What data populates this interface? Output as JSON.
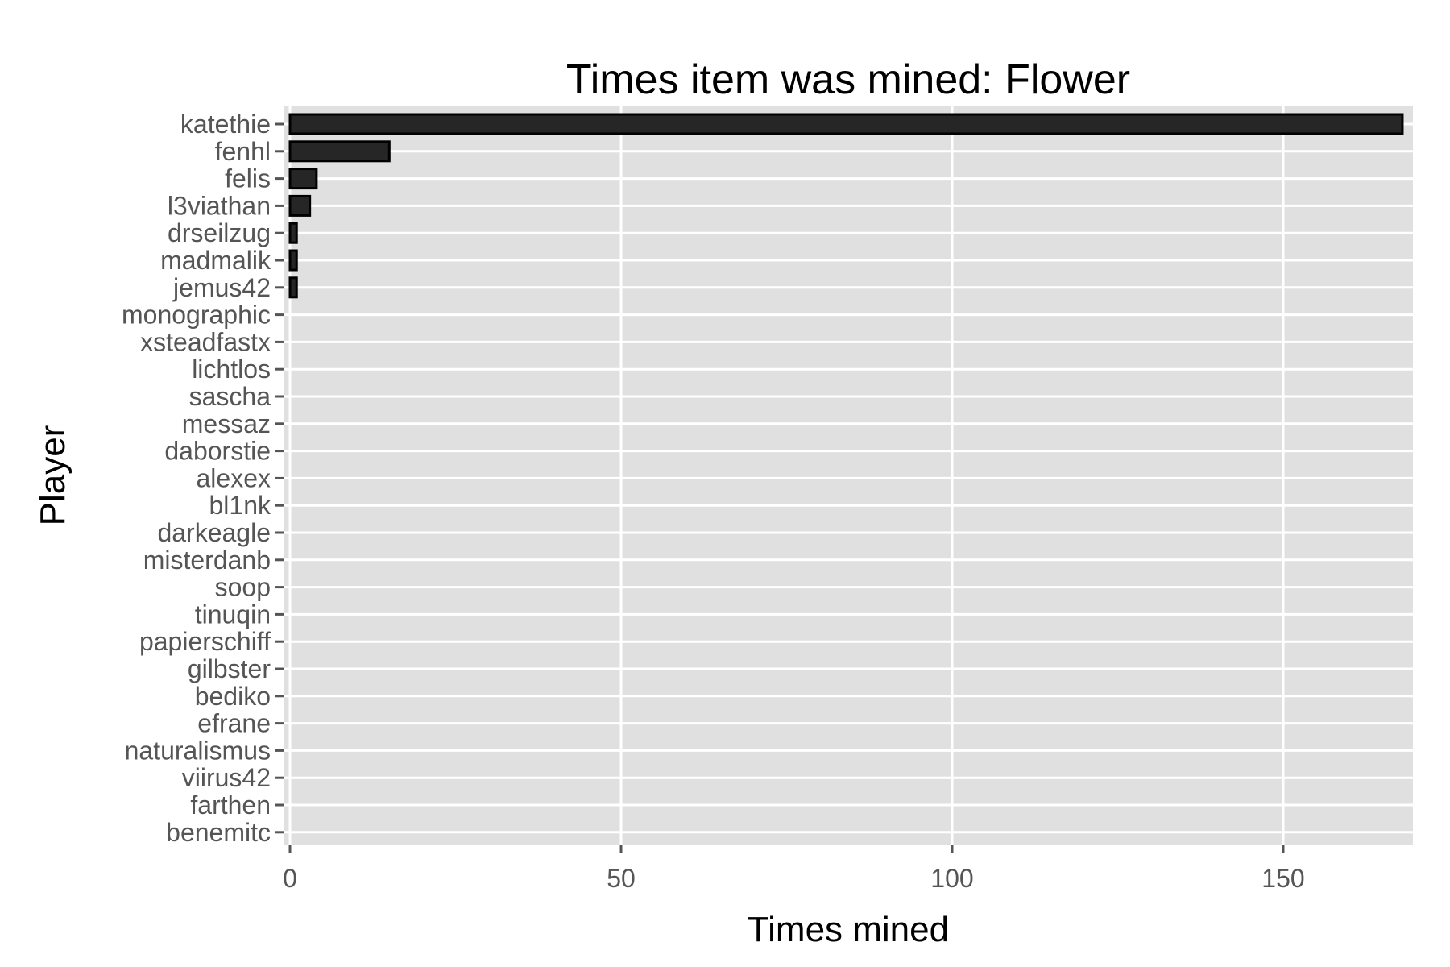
{
  "chart_data": {
    "type": "bar",
    "orientation": "horizontal",
    "title": "Times item was mined: Flower",
    "xlabel": "Times mined",
    "ylabel": "Player",
    "xlim": [
      0,
      170
    ],
    "xticks": [
      0,
      50,
      100,
      150
    ],
    "grid": true,
    "colors": {
      "panel": "#e0e0e0",
      "grid": "#ffffff",
      "bar_fill": "#262626",
      "bar_stroke": "#000000",
      "tick": "#555555",
      "text": "#000000"
    },
    "categories": [
      "katethie",
      "fenhl",
      "felis",
      "l3viathan",
      "drseilzug",
      "madmalik",
      "jemus42",
      "monographic",
      "xsteadfastx",
      "lichtlos",
      "sascha",
      "messaz",
      "daborstie",
      "alexex",
      "bl1nk",
      "darkeagle",
      "misterdanb",
      "soop",
      "tinuqin",
      "papierschiff",
      "gilbster",
      "bediko",
      "efrane",
      "naturalismus",
      "viirus42",
      "farthen",
      "benemitc"
    ],
    "values": [
      168,
      15,
      4,
      3,
      1,
      1,
      1,
      0,
      0,
      0,
      0,
      0,
      0,
      0,
      0,
      0,
      0,
      0,
      0,
      0,
      0,
      0,
      0,
      0,
      0,
      0,
      0
    ]
  }
}
